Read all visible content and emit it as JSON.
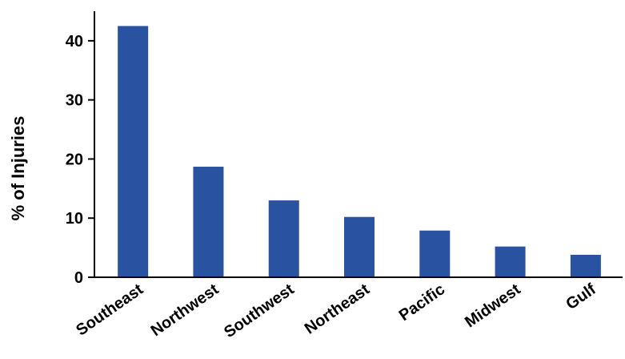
{
  "chart_data": {
    "type": "bar",
    "title": "",
    "xlabel": "",
    "ylabel": "% of Injuries",
    "categories": [
      "Southeast",
      "Northwest",
      "Southwest",
      "Northeast",
      "Pacific",
      "Midwest",
      "Gulf"
    ],
    "values": [
      42.5,
      18.7,
      13.0,
      10.2,
      7.9,
      5.2,
      3.8
    ],
    "ylim": [
      0,
      45
    ],
    "yticks": [
      "0",
      "10",
      "20",
      "30",
      "40"
    ],
    "grid": false,
    "bar_color": "#2952a0"
  }
}
